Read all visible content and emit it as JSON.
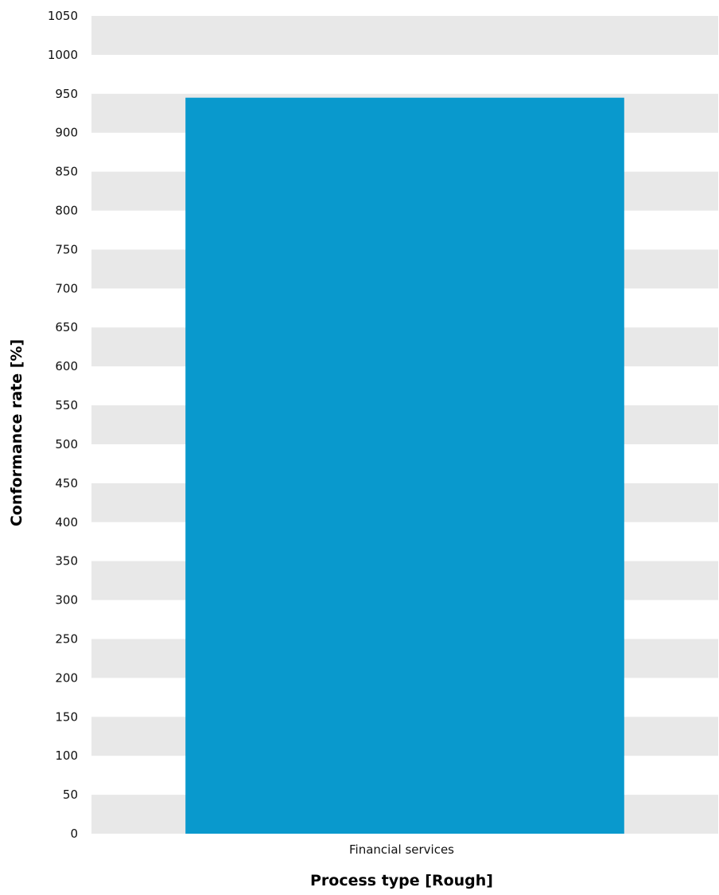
{
  "chart_data": {
    "type": "bar",
    "categories": [
      "Financial services"
    ],
    "values": [
      945
    ],
    "xlabel": "Process type [Rough]",
    "ylabel": "Conformance rate [%]",
    "ylim": [
      0,
      1050
    ],
    "yticks": [
      0,
      50,
      100,
      150,
      200,
      250,
      300,
      350,
      400,
      450,
      500,
      550,
      600,
      650,
      700,
      750,
      800,
      850,
      900,
      950,
      1000,
      1050
    ],
    "grid": "alternating horizontal bands",
    "colors": {
      "bar": "#0999cd",
      "band": "#e8e8e8"
    }
  }
}
